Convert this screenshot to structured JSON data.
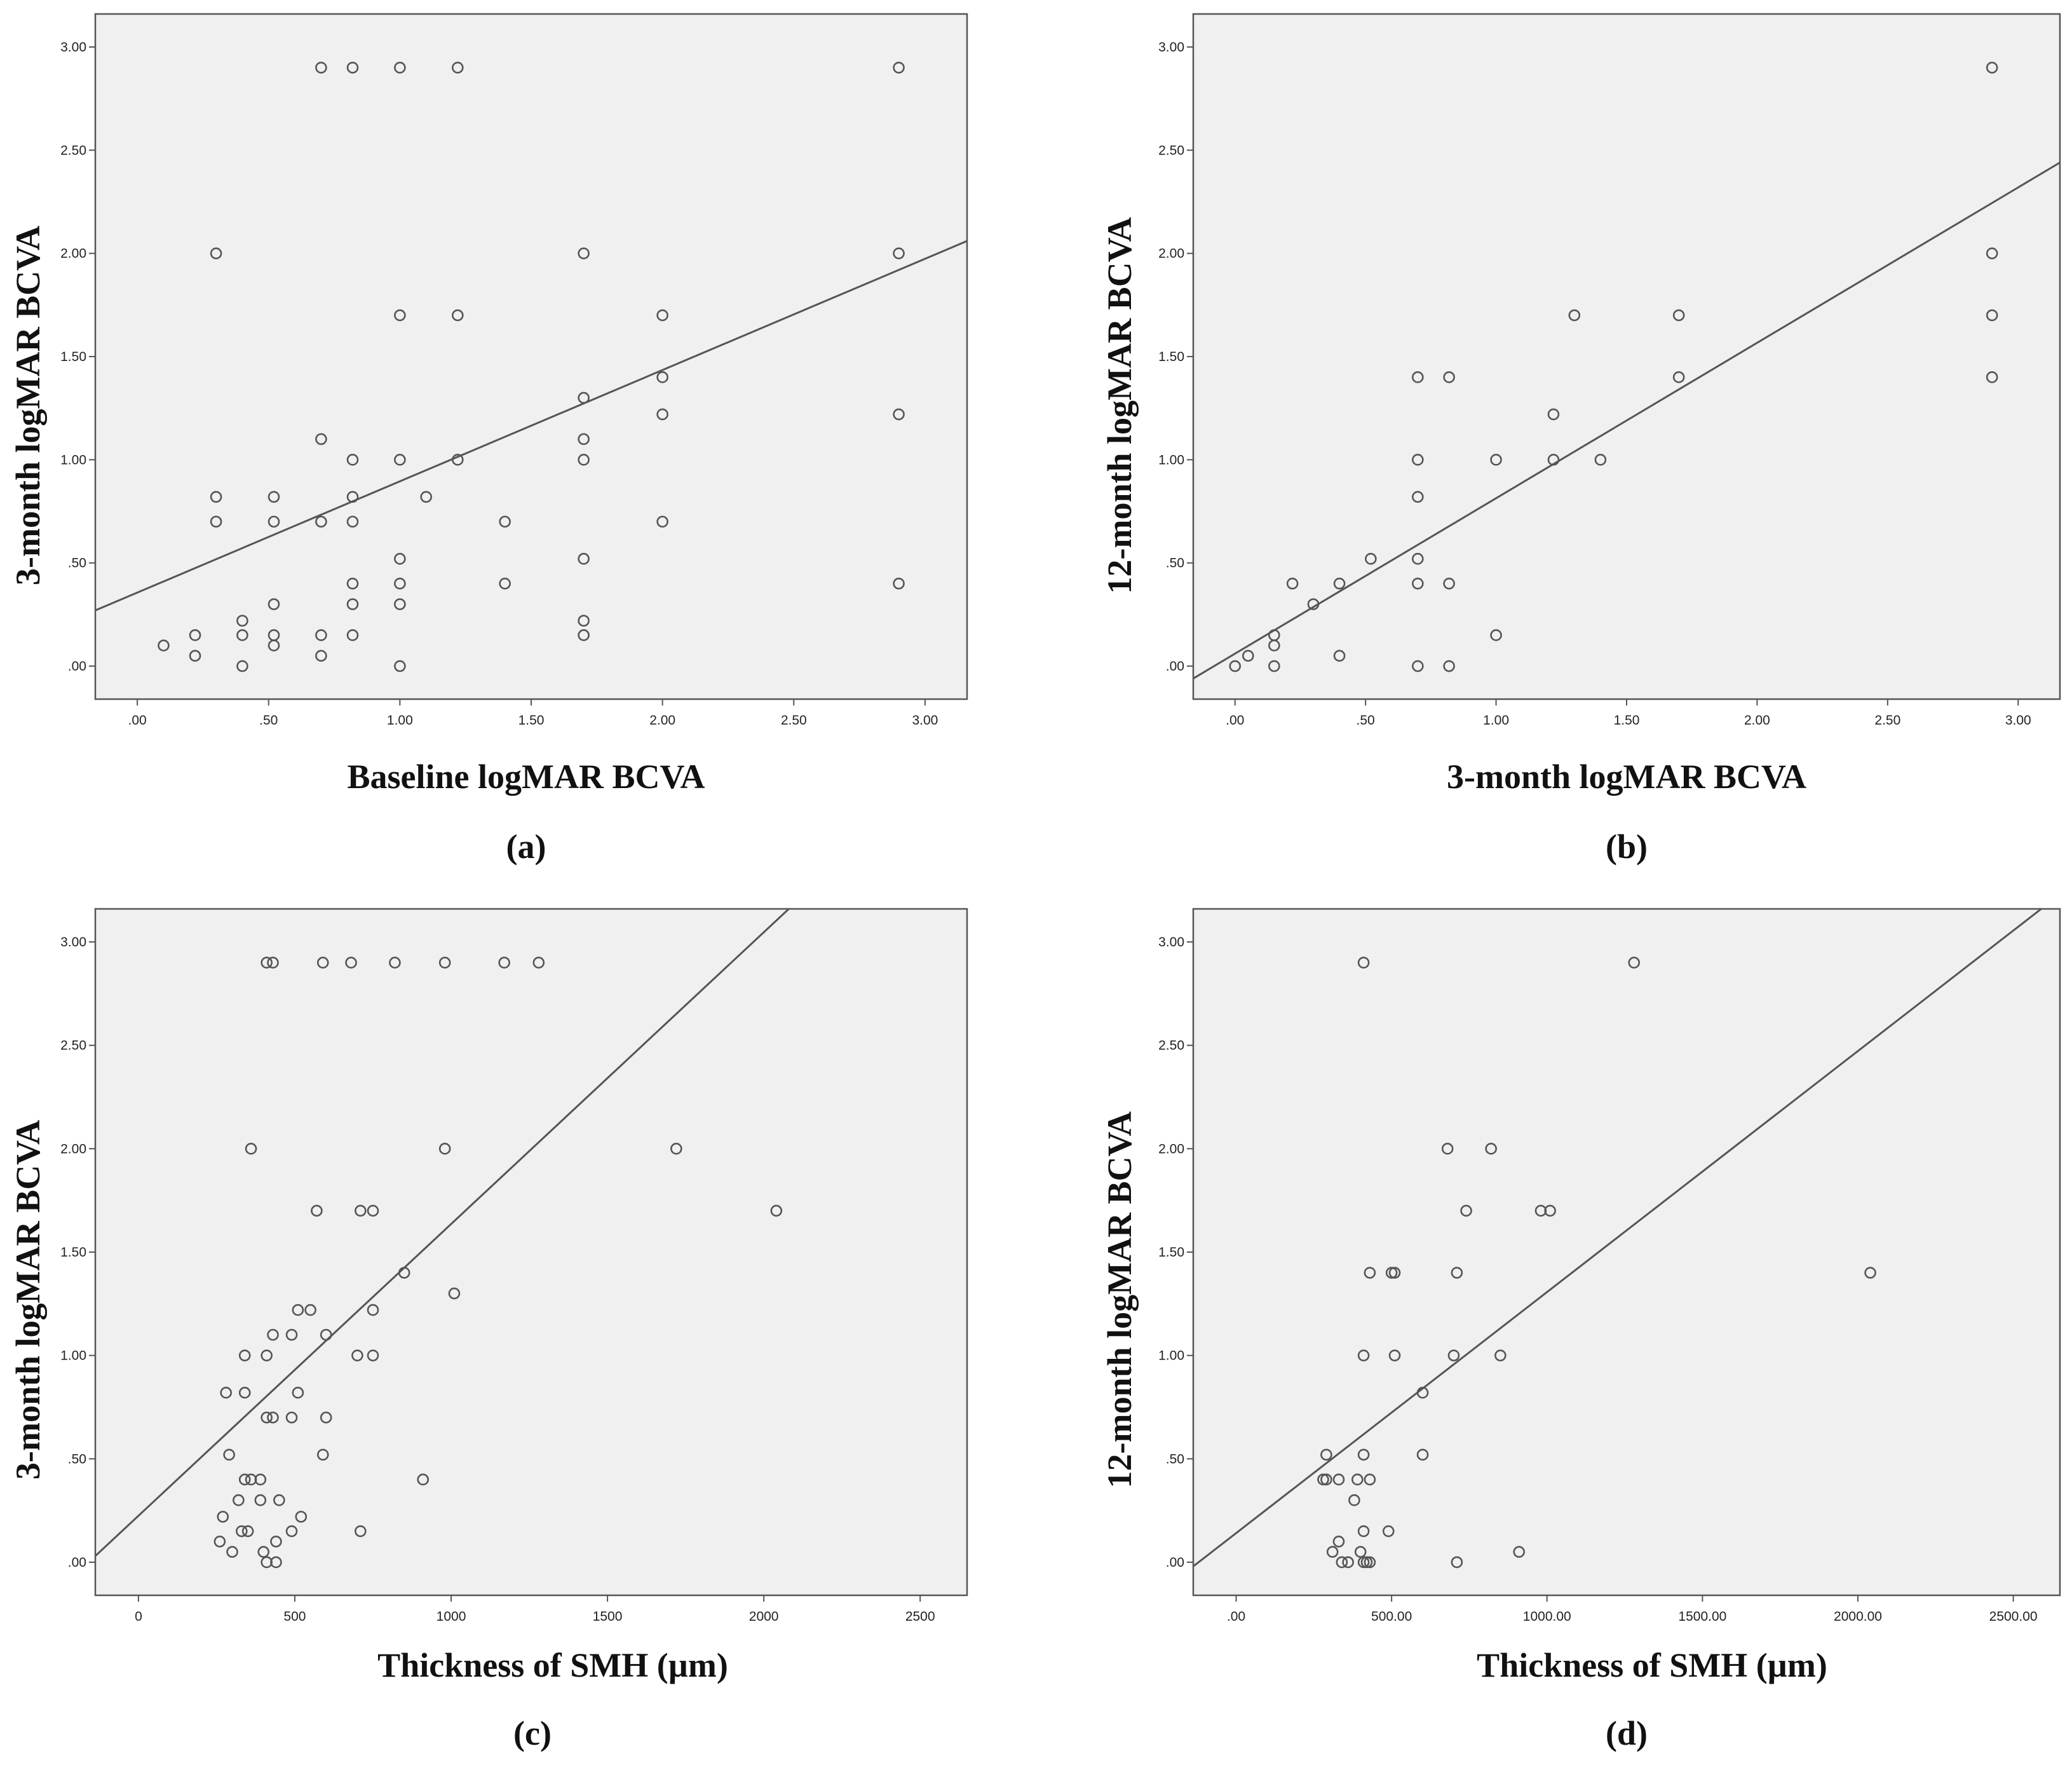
{
  "chart_data": [
    {
      "id": "a",
      "type": "scatter",
      "panel_label": "(a)",
      "xlabel": "Baseline logMAR BCVA",
      "ylabel": "3-month logMAR BCVA",
      "xlim": [
        -0.16,
        3.16
      ],
      "ylim": [
        -0.16,
        3.16
      ],
      "xticks": [
        0,
        0.5,
        1,
        1.5,
        2,
        2.5,
        3
      ],
      "xtick_labels": [
        ".00",
        ".50",
        "1.00",
        "1.50",
        "2.00",
        "2.50",
        "3.00"
      ],
      "yticks": [
        0,
        0.5,
        1,
        1.5,
        2,
        2.5,
        3
      ],
      "ytick_labels": [
        ".00",
        ".50",
        "1.00",
        "1.50",
        "2.00",
        "2.50",
        "3.00"
      ],
      "fit_line": {
        "x": [
          -0.16,
          3.16
        ],
        "y": [
          0.27,
          2.06
        ]
      },
      "points": [
        [
          0.1,
          0.1
        ],
        [
          0.22,
          0.05
        ],
        [
          0.22,
          0.15
        ],
        [
          0.3,
          2.0
        ],
        [
          0.3,
          0.82
        ],
        [
          0.3,
          0.7
        ],
        [
          0.4,
          0.22
        ],
        [
          0.4,
          0.15
        ],
        [
          0.4,
          0.0
        ],
        [
          0.52,
          0.82
        ],
        [
          0.52,
          0.7
        ],
        [
          0.52,
          0.3
        ],
        [
          0.52,
          0.15
        ],
        [
          0.52,
          0.1
        ],
        [
          0.7,
          2.9
        ],
        [
          0.7,
          1.1
        ],
        [
          0.7,
          0.7
        ],
        [
          0.7,
          0.15
        ],
        [
          0.7,
          0.05
        ],
        [
          0.82,
          2.9
        ],
        [
          0.82,
          1.0
        ],
        [
          0.82,
          0.82
        ],
        [
          0.82,
          0.7
        ],
        [
          0.82,
          0.4
        ],
        [
          0.82,
          0.3
        ],
        [
          0.82,
          0.15
        ],
        [
          1.0,
          2.9
        ],
        [
          1.0,
          1.7
        ],
        [
          1.0,
          1.0
        ],
        [
          1.0,
          0.52
        ],
        [
          1.0,
          0.4
        ],
        [
          1.0,
          0.3
        ],
        [
          1.0,
          0.0
        ],
        [
          1.1,
          0.82
        ],
        [
          1.22,
          2.9
        ],
        [
          1.22,
          1.7
        ],
        [
          1.22,
          1.0
        ],
        [
          1.4,
          0.7
        ],
        [
          1.4,
          0.4
        ],
        [
          1.7,
          2.0
        ],
        [
          1.7,
          1.3
        ],
        [
          1.7,
          1.1
        ],
        [
          1.7,
          1.0
        ],
        [
          1.7,
          0.52
        ],
        [
          1.7,
          0.22
        ],
        [
          1.7,
          0.15
        ],
        [
          2.0,
          1.7
        ],
        [
          2.0,
          1.4
        ],
        [
          2.0,
          1.22
        ],
        [
          2.0,
          0.7
        ],
        [
          2.9,
          2.9
        ],
        [
          2.9,
          2.0
        ],
        [
          2.9,
          1.22
        ],
        [
          2.9,
          0.4
        ]
      ]
    },
    {
      "id": "b",
      "type": "scatter",
      "panel_label": "(b)",
      "xlabel": "3-month logMAR BCVA",
      "ylabel": "12-month logMAR BCVA",
      "xlim": [
        -0.16,
        3.16
      ],
      "ylim": [
        -0.16,
        3.16
      ],
      "xticks": [
        0,
        0.5,
        1,
        1.5,
        2,
        2.5,
        3
      ],
      "xtick_labels": [
        ".00",
        ".50",
        "1.00",
        "1.50",
        "2.00",
        "2.50",
        "3.00"
      ],
      "yticks": [
        0,
        0.5,
        1,
        1.5,
        2,
        2.5,
        3
      ],
      "ytick_labels": [
        ".00",
        ".50",
        "1.00",
        "1.50",
        "2.00",
        "2.50",
        "3.00"
      ],
      "fit_line": {
        "x": [
          -0.16,
          3.16
        ],
        "y": [
          -0.06,
          2.44
        ]
      },
      "points": [
        [
          0.0,
          0.0
        ],
        [
          0.05,
          0.05
        ],
        [
          0.15,
          0.15
        ],
        [
          0.15,
          0.1
        ],
        [
          0.15,
          0.0
        ],
        [
          0.22,
          0.4
        ],
        [
          0.3,
          0.3
        ],
        [
          0.4,
          0.4
        ],
        [
          0.4,
          0.05
        ],
        [
          0.52,
          0.52
        ],
        [
          0.7,
          1.4
        ],
        [
          0.7,
          1.0
        ],
        [
          0.7,
          0.82
        ],
        [
          0.7,
          0.52
        ],
        [
          0.7,
          0.4
        ],
        [
          0.7,
          0.0
        ],
        [
          0.82,
          1.4
        ],
        [
          0.82,
          0.4
        ],
        [
          0.82,
          0.0
        ],
        [
          1.0,
          1.0
        ],
        [
          1.0,
          0.15
        ],
        [
          1.22,
          1.22
        ],
        [
          1.22,
          1.0
        ],
        [
          1.3,
          1.7
        ],
        [
          1.4,
          1.0
        ],
        [
          1.7,
          1.7
        ],
        [
          1.7,
          1.4
        ],
        [
          2.9,
          2.9
        ],
        [
          2.9,
          2.0
        ],
        [
          2.9,
          1.7
        ],
        [
          2.9,
          1.4
        ]
      ]
    },
    {
      "id": "c",
      "type": "scatter",
      "panel_label": "(c)",
      "xlabel": "Thickness of SMH (µm)",
      "ylabel": "3-month logMAR BCVA",
      "xlim": [
        -138,
        2650
      ],
      "ylim": [
        -0.16,
        3.16
      ],
      "xticks": [
        0,
        500,
        1000,
        1500,
        2000,
        2500
      ],
      "xtick_labels": [
        "0",
        "500",
        "1000",
        "1500",
        "2000",
        "2500"
      ],
      "yticks": [
        0,
        0.5,
        1,
        1.5,
        2,
        2.5,
        3
      ],
      "ytick_labels": [
        ".00",
        ".50",
        "1.00",
        "1.50",
        "2.00",
        "2.50",
        "3.00"
      ],
      "fit_line": {
        "x": [
          -138,
          2080
        ],
        "y": [
          0.03,
          3.16
        ]
      },
      "points": [
        [
          410,
          2.9
        ],
        [
          430,
          2.9
        ],
        [
          590,
          2.9
        ],
        [
          680,
          2.9
        ],
        [
          820,
          2.9
        ],
        [
          980,
          2.9
        ],
        [
          1170,
          2.9
        ],
        [
          1280,
          2.9
        ],
        [
          360,
          2.0
        ],
        [
          980,
          2.0
        ],
        [
          1720,
          2.0
        ],
        [
          2040,
          1.7
        ],
        [
          570,
          1.7
        ],
        [
          710,
          1.7
        ],
        [
          750,
          1.7
        ],
        [
          850,
          1.4
        ],
        [
          1010,
          1.3
        ],
        [
          510,
          1.22
        ],
        [
          550,
          1.22
        ],
        [
          750,
          1.22
        ],
        [
          430,
          1.1
        ],
        [
          490,
          1.1
        ],
        [
          600,
          1.1
        ],
        [
          340,
          1.0
        ],
        [
          410,
          1.0
        ],
        [
          700,
          1.0
        ],
        [
          750,
          1.0
        ],
        [
          280,
          0.82
        ],
        [
          340,
          0.82
        ],
        [
          510,
          0.82
        ],
        [
          410,
          0.7
        ],
        [
          430,
          0.7
        ],
        [
          490,
          0.7
        ],
        [
          600,
          0.7
        ],
        [
          290,
          0.52
        ],
        [
          590,
          0.52
        ],
        [
          340,
          0.4
        ],
        [
          360,
          0.4
        ],
        [
          390,
          0.4
        ],
        [
          910,
          0.4
        ],
        [
          320,
          0.3
        ],
        [
          390,
          0.3
        ],
        [
          450,
          0.3
        ],
        [
          270,
          0.22
        ],
        [
          520,
          0.22
        ],
        [
          330,
          0.15
        ],
        [
          350,
          0.15
        ],
        [
          490,
          0.15
        ],
        [
          710,
          0.15
        ],
        [
          260,
          0.1
        ],
        [
          440,
          0.1
        ],
        [
          300,
          0.05
        ],
        [
          400,
          0.05
        ],
        [
          410,
          0.0
        ],
        [
          440,
          0.0
        ]
      ]
    },
    {
      "id": "d",
      "type": "scatter",
      "panel_label": "(d)",
      "xlabel": "Thickness of SMH (µm)",
      "ylabel": "12-month logMAR BCVA",
      "xlim": [
        -138,
        2650
      ],
      "ylim": [
        -0.16,
        3.16
      ],
      "xticks": [
        0,
        500,
        1000,
        1500,
        2000,
        2500
      ],
      "xtick_labels": [
        ".00",
        "500.00",
        "1000.00",
        "1500.00",
        "2000.00",
        "2500.00"
      ],
      "yticks": [
        0,
        0.5,
        1,
        1.5,
        2,
        2.5,
        3
      ],
      "ytick_labels": [
        ".00",
        ".50",
        "1.00",
        "1.50",
        "2.00",
        "2.50",
        "3.00"
      ],
      "fit_line": {
        "x": [
          -138,
          2590
        ],
        "y": [
          -0.02,
          3.16
        ]
      },
      "points": [
        [
          410,
          2.9
        ],
        [
          1280,
          2.9
        ],
        [
          680,
          2.0
        ],
        [
          820,
          2.0
        ],
        [
          740,
          1.7
        ],
        [
          980,
          1.7
        ],
        [
          1010,
          1.7
        ],
        [
          430,
          1.4
        ],
        [
          500,
          1.4
        ],
        [
          510,
          1.4
        ],
        [
          710,
          1.4
        ],
        [
          2040,
          1.4
        ],
        [
          410,
          1.0
        ],
        [
          510,
          1.0
        ],
        [
          700,
          1.0
        ],
        [
          850,
          1.0
        ],
        [
          600,
          0.82
        ],
        [
          290,
          0.52
        ],
        [
          410,
          0.52
        ],
        [
          600,
          0.52
        ],
        [
          280,
          0.4
        ],
        [
          290,
          0.4
        ],
        [
          330,
          0.4
        ],
        [
          390,
          0.4
        ],
        [
          430,
          0.4
        ],
        [
          380,
          0.3
        ],
        [
          410,
          0.15
        ],
        [
          490,
          0.15
        ],
        [
          330,
          0.1
        ],
        [
          310,
          0.05
        ],
        [
          400,
          0.05
        ],
        [
          910,
          0.05
        ],
        [
          340,
          0.0
        ],
        [
          360,
          0.0
        ],
        [
          410,
          0.0
        ],
        [
          420,
          0.0
        ],
        [
          430,
          0.0
        ],
        [
          710,
          0.0
        ]
      ]
    }
  ]
}
